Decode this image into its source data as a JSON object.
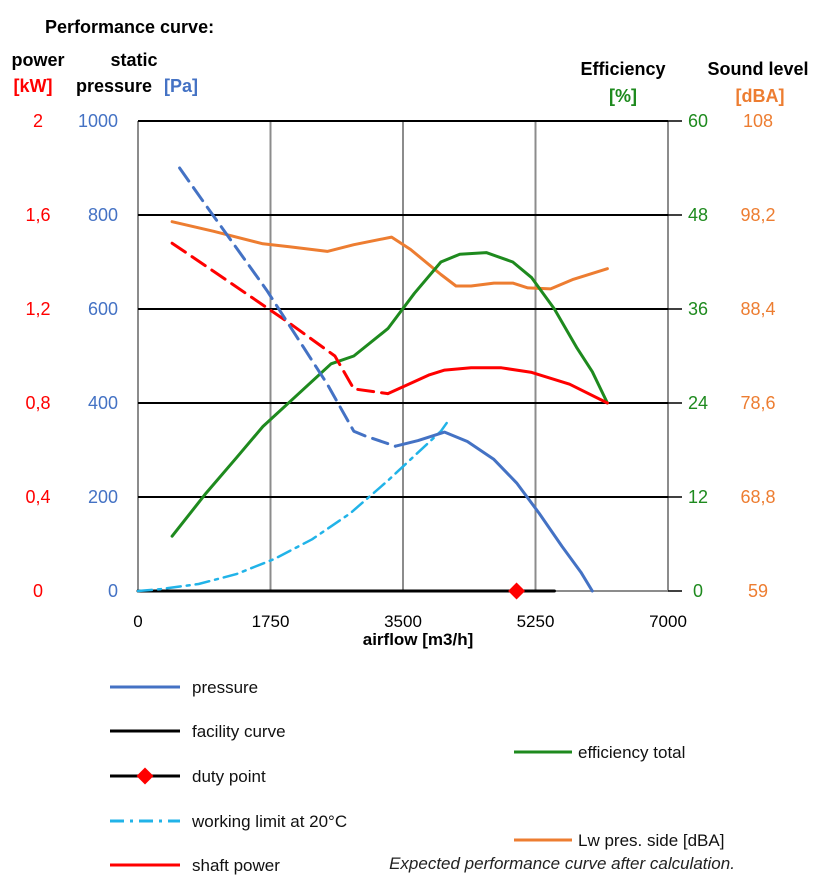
{
  "chart_data": {
    "type": "line",
    "title": "Performance curve:",
    "xlabel": "airflow [m3/h]",
    "xlim": [
      0,
      7000
    ],
    "x_ticks": [
      "0",
      "1750",
      "3500",
      "5250",
      "7000"
    ],
    "axes": {
      "power": {
        "label_line1": "power",
        "label_unit": "[kW]",
        "range": [
          0,
          2
        ],
        "ticks": [
          "0",
          "0,4",
          "0,8",
          "1,2",
          "1,6",
          "2"
        ],
        "color": "#ff0000"
      },
      "pressure": {
        "label_line1": "static",
        "label_line2": "pressure",
        "label_unit": "[Pa]",
        "range": [
          0,
          1000
        ],
        "ticks": [
          "0",
          "200",
          "400",
          "600",
          "800",
          "1000"
        ],
        "color": "#4472c4"
      },
      "efficiency": {
        "label_line1": "Efficiency",
        "label_unit": "[%]",
        "range": [
          0,
          60
        ],
        "ticks": [
          "0",
          "12",
          "24",
          "36",
          "48",
          "60"
        ],
        "color": "#1e8a1e"
      },
      "sound": {
        "label_line1": "Sound level",
        "label_unit": "[dBA]",
        "range": [
          59,
          108
        ],
        "ticks": [
          "59",
          "68,8",
          "78,6",
          "88,4",
          "98,2",
          "108"
        ],
        "color": "#ed7d31"
      }
    },
    "grid": true,
    "series": [
      {
        "name": "pressure",
        "axis": "pressure",
        "color": "#4472c4",
        "style": "solid-with-dashed-start",
        "x": [
          550,
          900,
          1300,
          1700,
          2100,
          2500,
          2850,
          3000,
          3400,
          3700,
          4050,
          4350,
          4700,
          5000,
          5300,
          5600,
          5850,
          6000
        ],
        "y": [
          900,
          820,
          730,
          640,
          540,
          440,
          340,
          330,
          308,
          320,
          338,
          318,
          280,
          230,
          165,
          95,
          40,
          0
        ]
      },
      {
        "name": "facility curve",
        "axis": "pressure",
        "color": "#000000",
        "style": "solid",
        "x": [
          0,
          5500
        ],
        "y": [
          0,
          0
        ]
      },
      {
        "name": "duty point",
        "axis": "pressure",
        "color": "#ff0000",
        "style": "marker",
        "x": [
          5000
        ],
        "y": [
          0
        ]
      },
      {
        "name": "working limit at 20°C",
        "axis": "pressure",
        "color": "#21b3e8",
        "style": "dashdot",
        "x": [
          0,
          300,
          800,
          1300,
          1800,
          2300,
          2800,
          3300,
          3700,
          3900,
          4000,
          4080
        ],
        "y": [
          0,
          4,
          15,
          36,
          68,
          110,
          165,
          235,
          295,
          325,
          340,
          358
        ]
      },
      {
        "name": "shaft power",
        "axis": "power",
        "color": "#ff0000",
        "style": "solid-with-dashed-start",
        "x": [
          450,
          1000,
          1500,
          2000,
          2600,
          2850,
          3300,
          3850,
          4050,
          4400,
          4800,
          5200,
          5700,
          6200
        ],
        "y": [
          1.48,
          1.36,
          1.25,
          1.14,
          1.0,
          0.86,
          0.84,
          0.92,
          0.94,
          0.95,
          0.95,
          0.93,
          0.88,
          0.8
        ]
      },
      {
        "name": "efficiency total",
        "axis": "efficiency",
        "color": "#1e8a1e",
        "style": "solid",
        "x": [
          450,
          900,
          1300,
          1650,
          2100,
          2550,
          2850,
          3300,
          3650,
          4000,
          4250,
          4600,
          4950,
          5200,
          5500,
          5800,
          6000,
          6200
        ],
        "y": [
          7,
          12.5,
          17,
          21,
          25,
          29,
          30,
          33.5,
          38,
          42,
          43,
          43.2,
          42,
          40,
          36,
          31,
          28,
          24
        ]
      },
      {
        "name": "Lw pres. side [dBA]",
        "axis": "sound",
        "color": "#ed7d31",
        "style": "solid",
        "x": [
          450,
          1000,
          1650,
          2000,
          2500,
          2850,
          3350,
          3600,
          4000,
          4200,
          4400,
          4700,
          4950,
          5150,
          5450,
          5750,
          6200
        ],
        "y": [
          97.5,
          96.5,
          95.2,
          94.9,
          94.4,
          95.1,
          95.9,
          94.6,
          92.0,
          90.8,
          90.8,
          91.1,
          91.1,
          90.6,
          90.5,
          91.5,
          92.6
        ]
      }
    ],
    "legend_placement": "bottom",
    "annotation": "Expected performance curve after calculation."
  }
}
